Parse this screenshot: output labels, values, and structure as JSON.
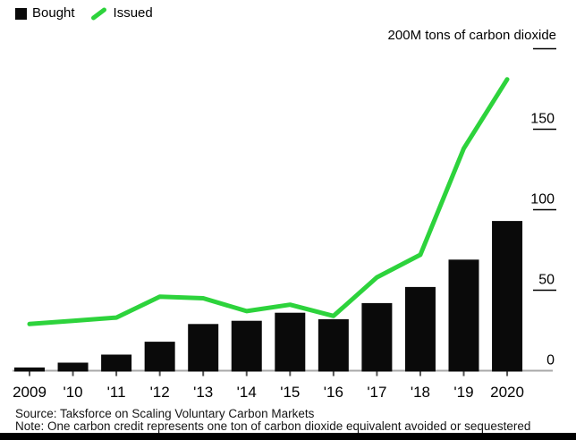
{
  "legend": {
    "bought": "Bought",
    "issued": "Issued"
  },
  "axis_title": "200M tons of carbon dioxide",
  "footer": {
    "source": "Source: Taksforce on Scaling Voluntary Carbon Markets",
    "note": "Note: One carbon credit represents one ton of carbon dioxide equivalent avoided or sequestered"
  },
  "colors": {
    "bought": "#0a0a0a",
    "issued": "#2dd33c",
    "baseline": "#a8a8a8",
    "axis_tick": "#555555",
    "y_tick_line": "#000000"
  },
  "chart_data": {
    "type": "bar",
    "title": "200M tons of carbon dioxide",
    "categories": [
      "2009",
      "'10",
      "'11",
      "'12",
      "'13",
      "'14",
      "'15",
      "'16",
      "'17",
      "'18",
      "'19",
      "2020"
    ],
    "series": [
      {
        "name": "Bought",
        "type": "bar",
        "color": "#0a0a0a",
        "values": [
          2,
          5,
          10,
          18,
          29,
          31,
          36,
          32,
          42,
          52,
          69,
          93
        ]
      },
      {
        "name": "Issued",
        "type": "line",
        "color": "#2dd33c",
        "values": [
          29,
          31,
          33,
          46,
          45,
          37,
          41,
          34,
          58,
          72,
          138,
          181
        ]
      }
    ],
    "xlabel": "",
    "ylabel": "200M tons of carbon dioxide",
    "ylim": [
      0,
      200
    ],
    "yticks": [
      0,
      50,
      100,
      150,
      200
    ],
    "ytick_labels": [
      "0",
      "50",
      "100",
      "150",
      "200M tons of carbon dioxide"
    ],
    "legend_position": "top-left",
    "axis_side": "right",
    "grid": false
  }
}
